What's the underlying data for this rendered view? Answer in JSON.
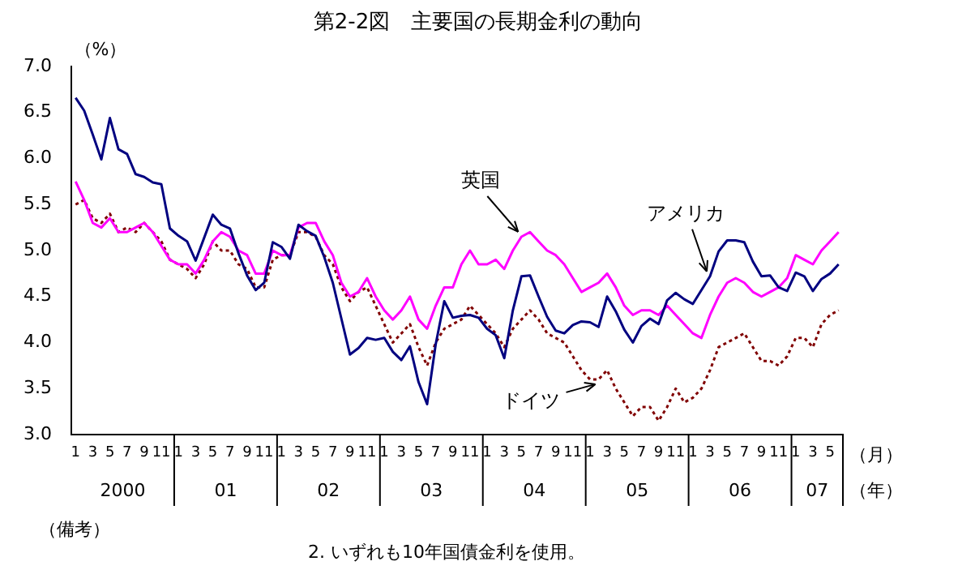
{
  "chart_data": {
    "type": "line",
    "title": "第2-2図　主要国の長期金利の動向",
    "ylabel": "（%）",
    "xlabel": "（月）",
    "categories": [
      "1",
      null,
      "3",
      null,
      "5",
      null,
      "7",
      null,
      "9",
      null,
      "11",
      null,
      "1",
      null,
      "3",
      null,
      "5",
      null,
      "7",
      null,
      "9",
      null,
      "11",
      null,
      "1",
      null,
      "3",
      null,
      "5",
      null,
      "7",
      null,
      "9",
      null,
      "11",
      null,
      "1",
      null,
      "3",
      null,
      "5",
      null,
      "7",
      null,
      "9",
      null,
      "11",
      null,
      "1",
      null,
      "3",
      null,
      "5",
      null,
      "7",
      null,
      "9",
      null,
      "11",
      null,
      "1",
      null,
      "3",
      null,
      "5",
      null,
      "7",
      null,
      "9",
      null,
      "11",
      null,
      "1",
      null,
      "3",
      null,
      "5",
      null,
      "7",
      null,
      "9",
      null,
      "11",
      null,
      "1",
      null,
      "3",
      null,
      "5",
      null
    ],
    "series": [
      {
        "name": "アメリカ",
        "color": "#000080",
        "line_style": "solid",
        "values": [
          6.66,
          6.52,
          6.26,
          5.99,
          6.44,
          6.1,
          6.05,
          5.83,
          5.8,
          5.74,
          5.72,
          5.24,
          5.16,
          5.1,
          4.89,
          5.14,
          5.39,
          5.28,
          5.24,
          4.97,
          4.73,
          4.57,
          4.65,
          5.09,
          5.04,
          4.91,
          5.28,
          5.21,
          5.16,
          4.93,
          4.65,
          4.26,
          3.87,
          3.94,
          4.05,
          4.03,
          4.05,
          3.9,
          3.81,
          3.96,
          3.57,
          3.33,
          3.98,
          4.45,
          4.27,
          4.29,
          4.3,
          4.27,
          4.15,
          4.08,
          3.83,
          4.35,
          4.72,
          4.73,
          4.5,
          4.28,
          4.13,
          4.1,
          4.19,
          4.23,
          4.22,
          4.17,
          4.5,
          4.34,
          4.14,
          4,
          4.18,
          4.26,
          4.2,
          4.46,
          4.54,
          4.47,
          4.42,
          4.57,
          4.72,
          4.99,
          5.11,
          5.11,
          5.09,
          4.88,
          4.72,
          4.73,
          4.6,
          4.56,
          4.76,
          4.72,
          4.56,
          4.69,
          4.75,
          4.85
        ]
      },
      {
        "name": "英国",
        "color": "#ff00ff",
        "line_style": "solid",
        "values": [
          5.75,
          5.55,
          5.3,
          5.25,
          5.35,
          5.2,
          5.2,
          5.25,
          5.3,
          5.2,
          5.05,
          4.9,
          4.85,
          4.85,
          4.75,
          4.9,
          5.1,
          5.2,
          5.15,
          5,
          4.95,
          4.75,
          4.75,
          5,
          4.95,
          4.95,
          5.25,
          5.3,
          5.3,
          5.1,
          4.95,
          4.65,
          4.5,
          4.55,
          4.7,
          4.5,
          4.35,
          4.25,
          4.35,
          4.5,
          4.25,
          4.15,
          4.4,
          4.6,
          4.6,
          4.85,
          5,
          4.85,
          4.85,
          4.9,
          4.8,
          5,
          5.15,
          5.2,
          5.1,
          5,
          4.95,
          4.85,
          4.7,
          4.55,
          4.6,
          4.65,
          4.75,
          4.6,
          4.4,
          4.3,
          4.35,
          4.35,
          4.3,
          4.4,
          4.3,
          4.2,
          4.1,
          4.05,
          4.3,
          4.5,
          4.65,
          4.7,
          4.65,
          4.55,
          4.5,
          4.55,
          4.6,
          4.7,
          4.95,
          4.9,
          4.85,
          5,
          5.1,
          5.2
        ]
      },
      {
        "name": "ドイツ",
        "color": "#800000",
        "line_style": "dotted",
        "values": [
          5.5,
          5.55,
          5.35,
          5.3,
          5.4,
          5.2,
          5.25,
          5.2,
          5.3,
          5.2,
          5.1,
          4.9,
          4.85,
          4.8,
          4.7,
          4.85,
          5.1,
          5,
          5,
          4.85,
          4.8,
          4.6,
          4.6,
          4.9,
          4.95,
          4.95,
          5.2,
          5.2,
          5.15,
          4.95,
          4.85,
          4.6,
          4.45,
          4.55,
          4.6,
          4.4,
          4.2,
          4,
          4.1,
          4.2,
          3.95,
          3.75,
          4,
          4.15,
          4.2,
          4.25,
          4.4,
          4.3,
          4.2,
          4.1,
          3.95,
          4.15,
          4.25,
          4.35,
          4.25,
          4.1,
          4.05,
          4,
          3.85,
          3.7,
          3.6,
          3.6,
          3.7,
          3.5,
          3.35,
          3.2,
          3.3,
          3.3,
          3.15,
          3.3,
          3.5,
          3.35,
          3.4,
          3.5,
          3.7,
          3.95,
          4,
          4.05,
          4.1,
          3.95,
          3.8,
          3.8,
          3.75,
          3.85,
          4.05,
          4.05,
          3.95,
          4.2,
          4.3,
          4.35
        ]
      }
    ],
    "ylim": [
      3,
      7
    ],
    "yticks": [
      {
        "value": 3,
        "label": "3.0"
      },
      {
        "value": 3.5,
        "label": "3.5"
      },
      {
        "value": 4,
        "label": "4.0"
      },
      {
        "value": 4.5,
        "label": "4.5"
      },
      {
        "value": 5,
        "label": "5.0"
      },
      {
        "value": 5.5,
        "label": "5.5"
      },
      {
        "value": 6,
        "label": "6.0"
      },
      {
        "value": 6.5,
        "label": "6.5"
      },
      {
        "value": 7,
        "label": "7.0"
      }
    ],
    "grid": false,
    "legend": false,
    "marker": "none",
    "annotations": [
      "2000",
      "01",
      "02",
      "03",
      "04",
      "05",
      "06",
      "07",
      "（年）",
      "（備考）",
      "2. いずれも10年国債金利を使用。"
    ]
  }
}
